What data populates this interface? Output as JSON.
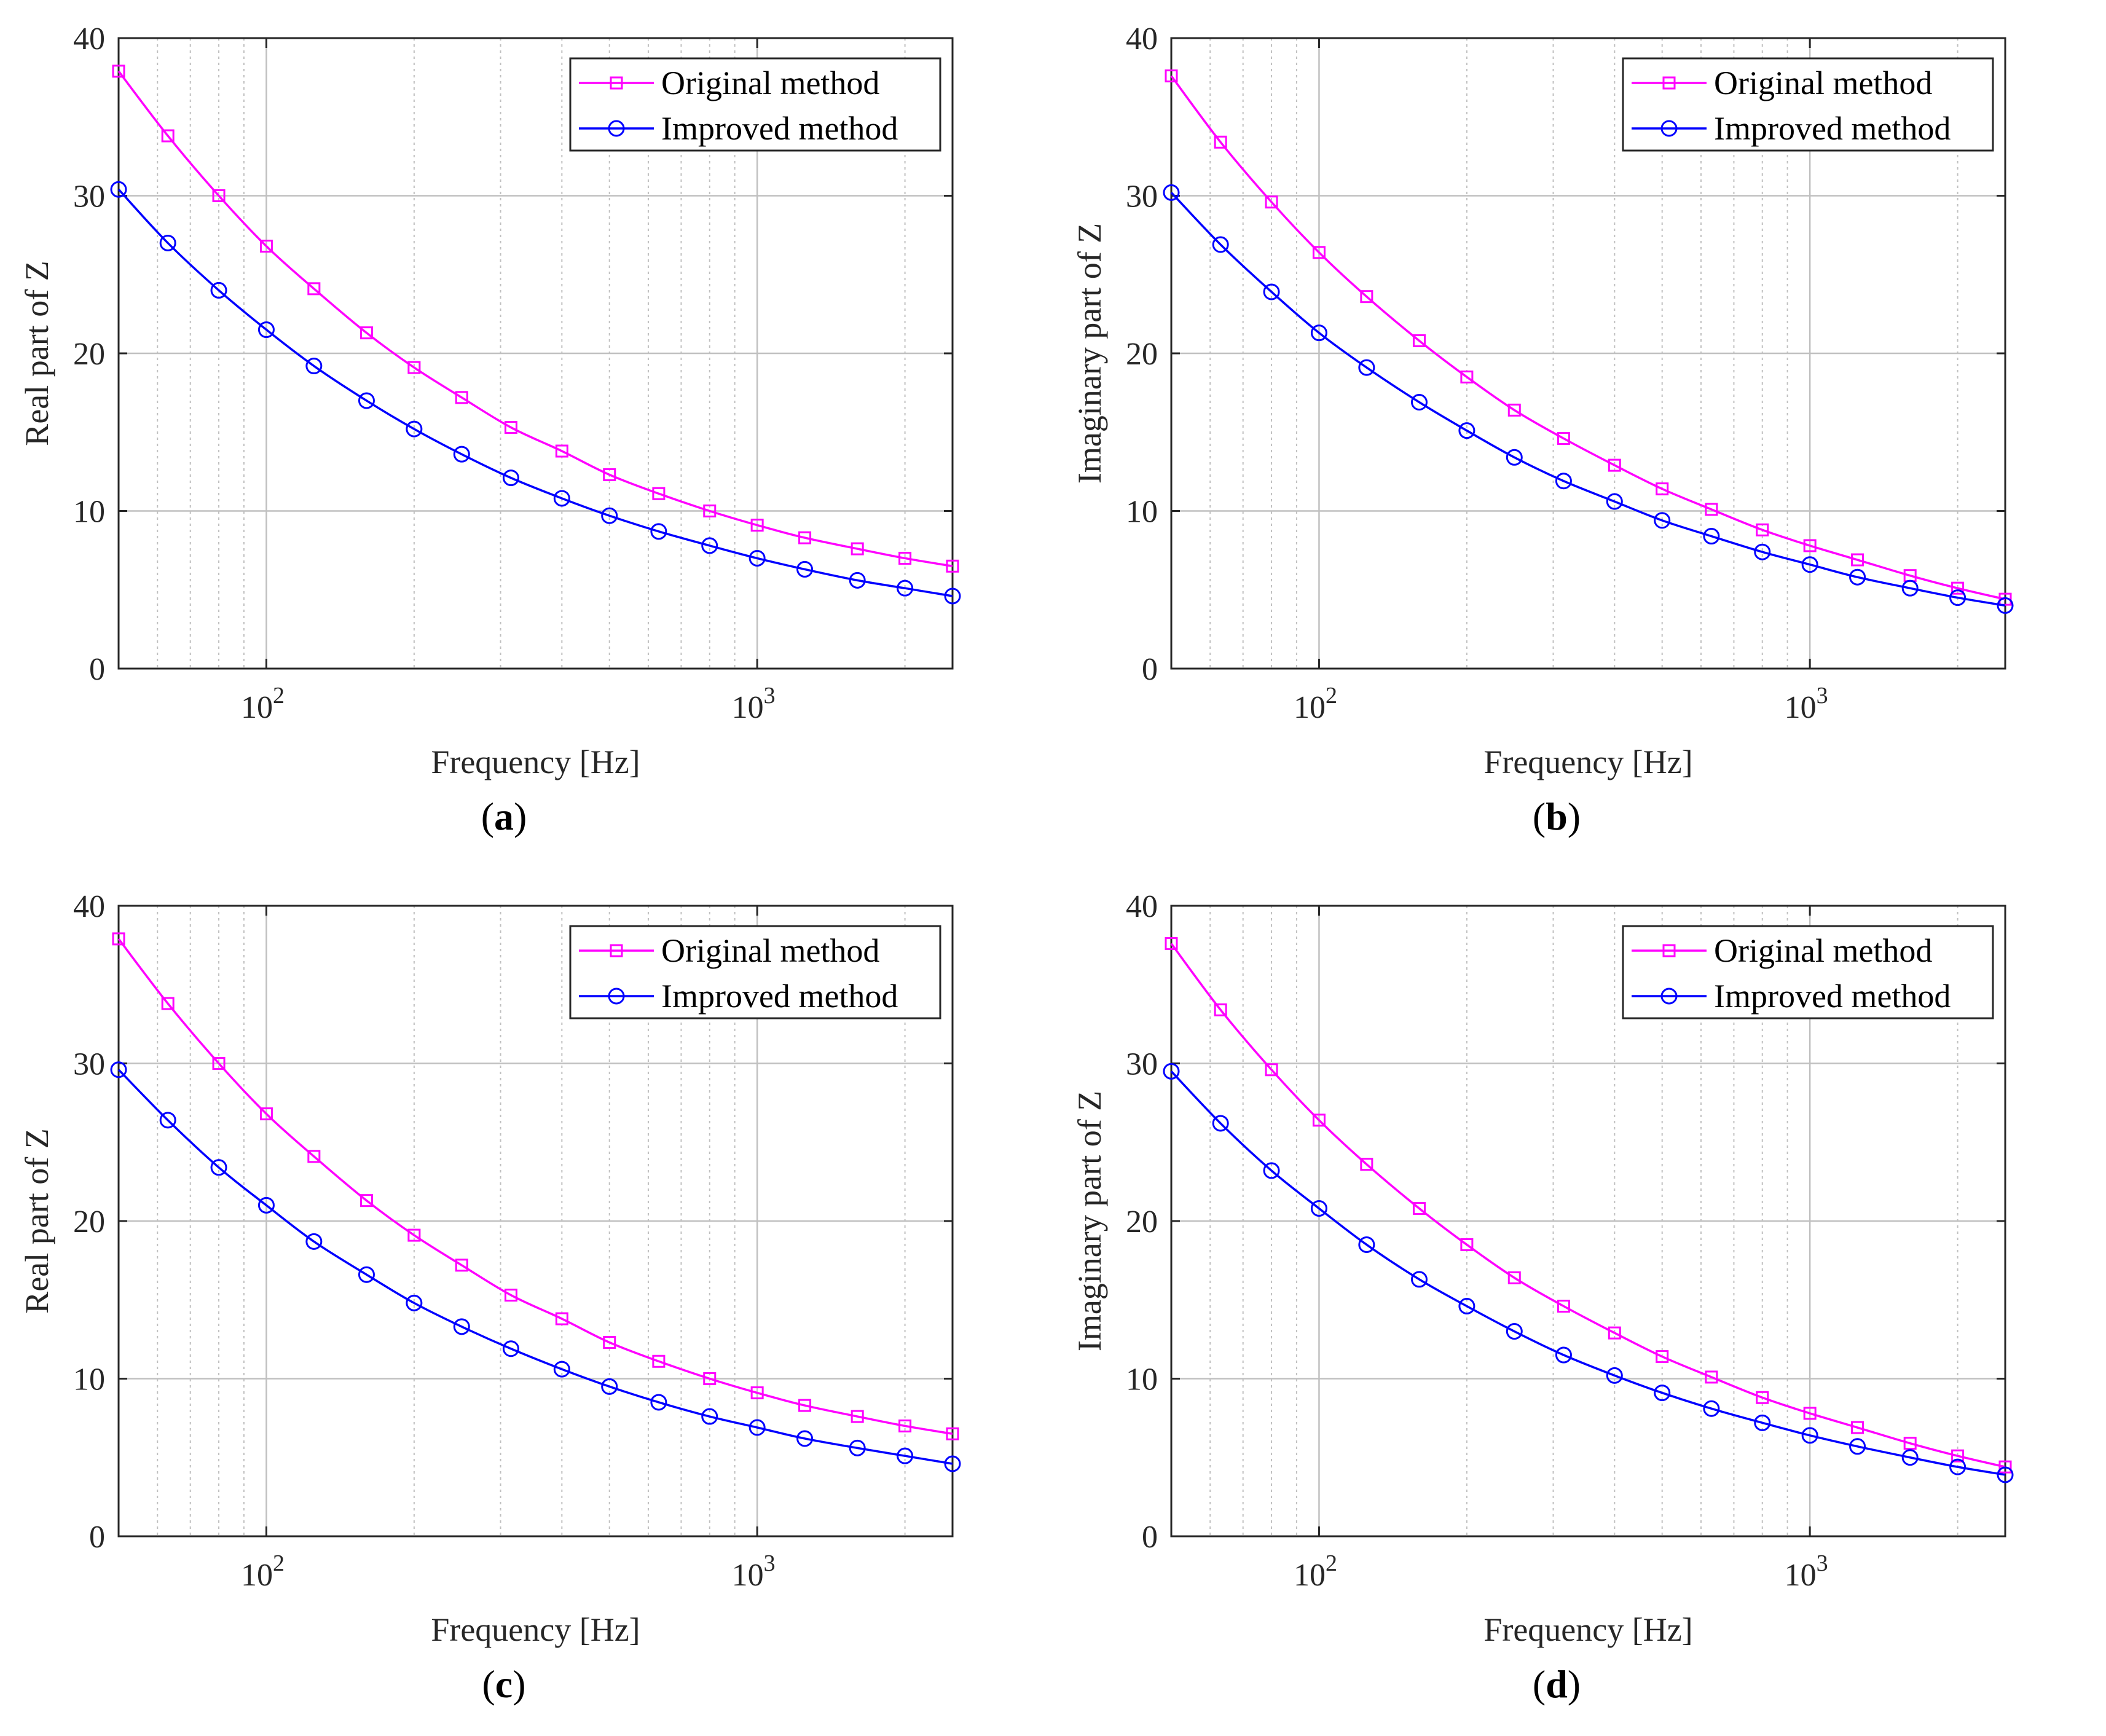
{
  "figure_title": "",
  "legend_labels": [
    "Original method",
    "Improved method"
  ],
  "colors": {
    "original": "#ff00ff",
    "improved": "#0000ff",
    "grid": "#c0c0c0",
    "axis": "#262626"
  },
  "chart_data": [
    {
      "id": "a",
      "panel_label": "a",
      "type": "line",
      "title": "",
      "xlabel": "Frequency [Hz]",
      "ylabel": "Real part of Z",
      "xscale": "log",
      "xlim": [
        50,
        2500
      ],
      "ylim": [
        0,
        40
      ],
      "yticks": [
        0,
        10,
        20,
        30,
        40
      ],
      "xticks": [
        {
          "value": 100,
          "base": "10",
          "exp": "2"
        },
        {
          "value": 1000,
          "base": "10",
          "exp": "3"
        }
      ],
      "grid": true,
      "legend_position": "top-right",
      "x": [
        50,
        63,
        80,
        100,
        125,
        160,
        200,
        250,
        315,
        400,
        500,
        630,
        800,
        1000,
        1250,
        1600,
        2000,
        2500
      ],
      "series": [
        {
          "name": "Original method",
          "marker": "square",
          "color": "#ff00ff",
          "values": [
            37.9,
            33.8,
            30.0,
            26.8,
            24.1,
            21.3,
            19.1,
            17.2,
            15.3,
            13.8,
            12.3,
            11.1,
            10.0,
            9.1,
            8.3,
            7.6,
            7.0,
            6.5
          ]
        },
        {
          "name": "Improved method",
          "marker": "circle",
          "color": "#0000ff",
          "values": [
            30.4,
            27.0,
            24.0,
            21.5,
            19.2,
            17.0,
            15.2,
            13.6,
            12.1,
            10.8,
            9.7,
            8.7,
            7.8,
            7.0,
            6.3,
            5.6,
            5.1,
            4.6
          ]
        }
      ]
    },
    {
      "id": "b",
      "panel_label": "b",
      "type": "line",
      "title": "",
      "xlabel": "Frequency [Hz]",
      "ylabel": "Imaginary part of Z",
      "xscale": "log",
      "xlim": [
        50,
        2500
      ],
      "ylim": [
        0,
        40
      ],
      "yticks": [
        0,
        10,
        20,
        30,
        40
      ],
      "xticks": [
        {
          "value": 100,
          "base": "10",
          "exp": "2"
        },
        {
          "value": 1000,
          "base": "10",
          "exp": "3"
        }
      ],
      "grid": true,
      "legend_position": "top-right",
      "x": [
        50,
        63,
        80,
        100,
        125,
        160,
        200,
        250,
        315,
        400,
        500,
        630,
        800,
        1000,
        1250,
        1600,
        2000,
        2500
      ],
      "series": [
        {
          "name": "Original method",
          "marker": "square",
          "color": "#ff00ff",
          "values": [
            37.6,
            33.4,
            29.6,
            26.4,
            23.6,
            20.8,
            18.5,
            16.4,
            14.6,
            12.9,
            11.4,
            10.1,
            8.8,
            7.8,
            6.9,
            5.9,
            5.1,
            4.4
          ]
        },
        {
          "name": "Improved method",
          "marker": "circle",
          "color": "#0000ff",
          "values": [
            30.2,
            26.9,
            23.9,
            21.3,
            19.1,
            16.9,
            15.1,
            13.4,
            11.9,
            10.6,
            9.4,
            8.4,
            7.4,
            6.6,
            5.8,
            5.1,
            4.5,
            4.0
          ]
        }
      ]
    },
    {
      "id": "c",
      "panel_label": "c",
      "type": "line",
      "title": "",
      "xlabel": "Frequency [Hz]",
      "ylabel": "Real part of Z",
      "xscale": "log",
      "xlim": [
        50,
        2500
      ],
      "ylim": [
        0,
        40
      ],
      "yticks": [
        0,
        10,
        20,
        30,
        40
      ],
      "xticks": [
        {
          "value": 100,
          "base": "10",
          "exp": "2"
        },
        {
          "value": 1000,
          "base": "10",
          "exp": "3"
        }
      ],
      "grid": true,
      "legend_position": "top-right",
      "x": [
        50,
        63,
        80,
        100,
        125,
        160,
        200,
        250,
        315,
        400,
        500,
        630,
        800,
        1000,
        1250,
        1600,
        2000,
        2500
      ],
      "series": [
        {
          "name": "Original method",
          "marker": "square",
          "color": "#ff00ff",
          "values": [
            37.9,
            33.8,
            30.0,
            26.8,
            24.1,
            21.3,
            19.1,
            17.2,
            15.3,
            13.8,
            12.3,
            11.1,
            10.0,
            9.1,
            8.3,
            7.6,
            7.0,
            6.5
          ]
        },
        {
          "name": "Improved method",
          "marker": "circle",
          "color": "#0000ff",
          "values": [
            29.6,
            26.4,
            23.4,
            21.0,
            18.7,
            16.6,
            14.8,
            13.3,
            11.9,
            10.6,
            9.5,
            8.5,
            7.6,
            6.9,
            6.2,
            5.6,
            5.1,
            4.6
          ]
        }
      ]
    },
    {
      "id": "d",
      "panel_label": "d",
      "type": "line",
      "title": "",
      "xlabel": "Frequency [Hz]",
      "ylabel": "Imaginary part of Z",
      "xscale": "log",
      "xlim": [
        50,
        2500
      ],
      "ylim": [
        0,
        40
      ],
      "yticks": [
        0,
        10,
        20,
        30,
        40
      ],
      "xticks": [
        {
          "value": 100,
          "base": "10",
          "exp": "2"
        },
        {
          "value": 1000,
          "base": "10",
          "exp": "3"
        }
      ],
      "grid": true,
      "legend_position": "top-right",
      "x": [
        50,
        63,
        80,
        100,
        125,
        160,
        200,
        250,
        315,
        400,
        500,
        630,
        800,
        1000,
        1250,
        1600,
        2000,
        2500
      ],
      "series": [
        {
          "name": "Original method",
          "marker": "square",
          "color": "#ff00ff",
          "values": [
            37.6,
            33.4,
            29.6,
            26.4,
            23.6,
            20.8,
            18.5,
            16.4,
            14.6,
            12.9,
            11.4,
            10.1,
            8.8,
            7.8,
            6.9,
            5.9,
            5.1,
            4.4
          ]
        },
        {
          "name": "Improved method",
          "marker": "circle",
          "color": "#0000ff",
          "values": [
            29.5,
            26.2,
            23.2,
            20.8,
            18.5,
            16.3,
            14.6,
            13.0,
            11.5,
            10.2,
            9.1,
            8.1,
            7.2,
            6.4,
            5.7,
            5.0,
            4.4,
            3.9
          ]
        }
      ]
    }
  ]
}
